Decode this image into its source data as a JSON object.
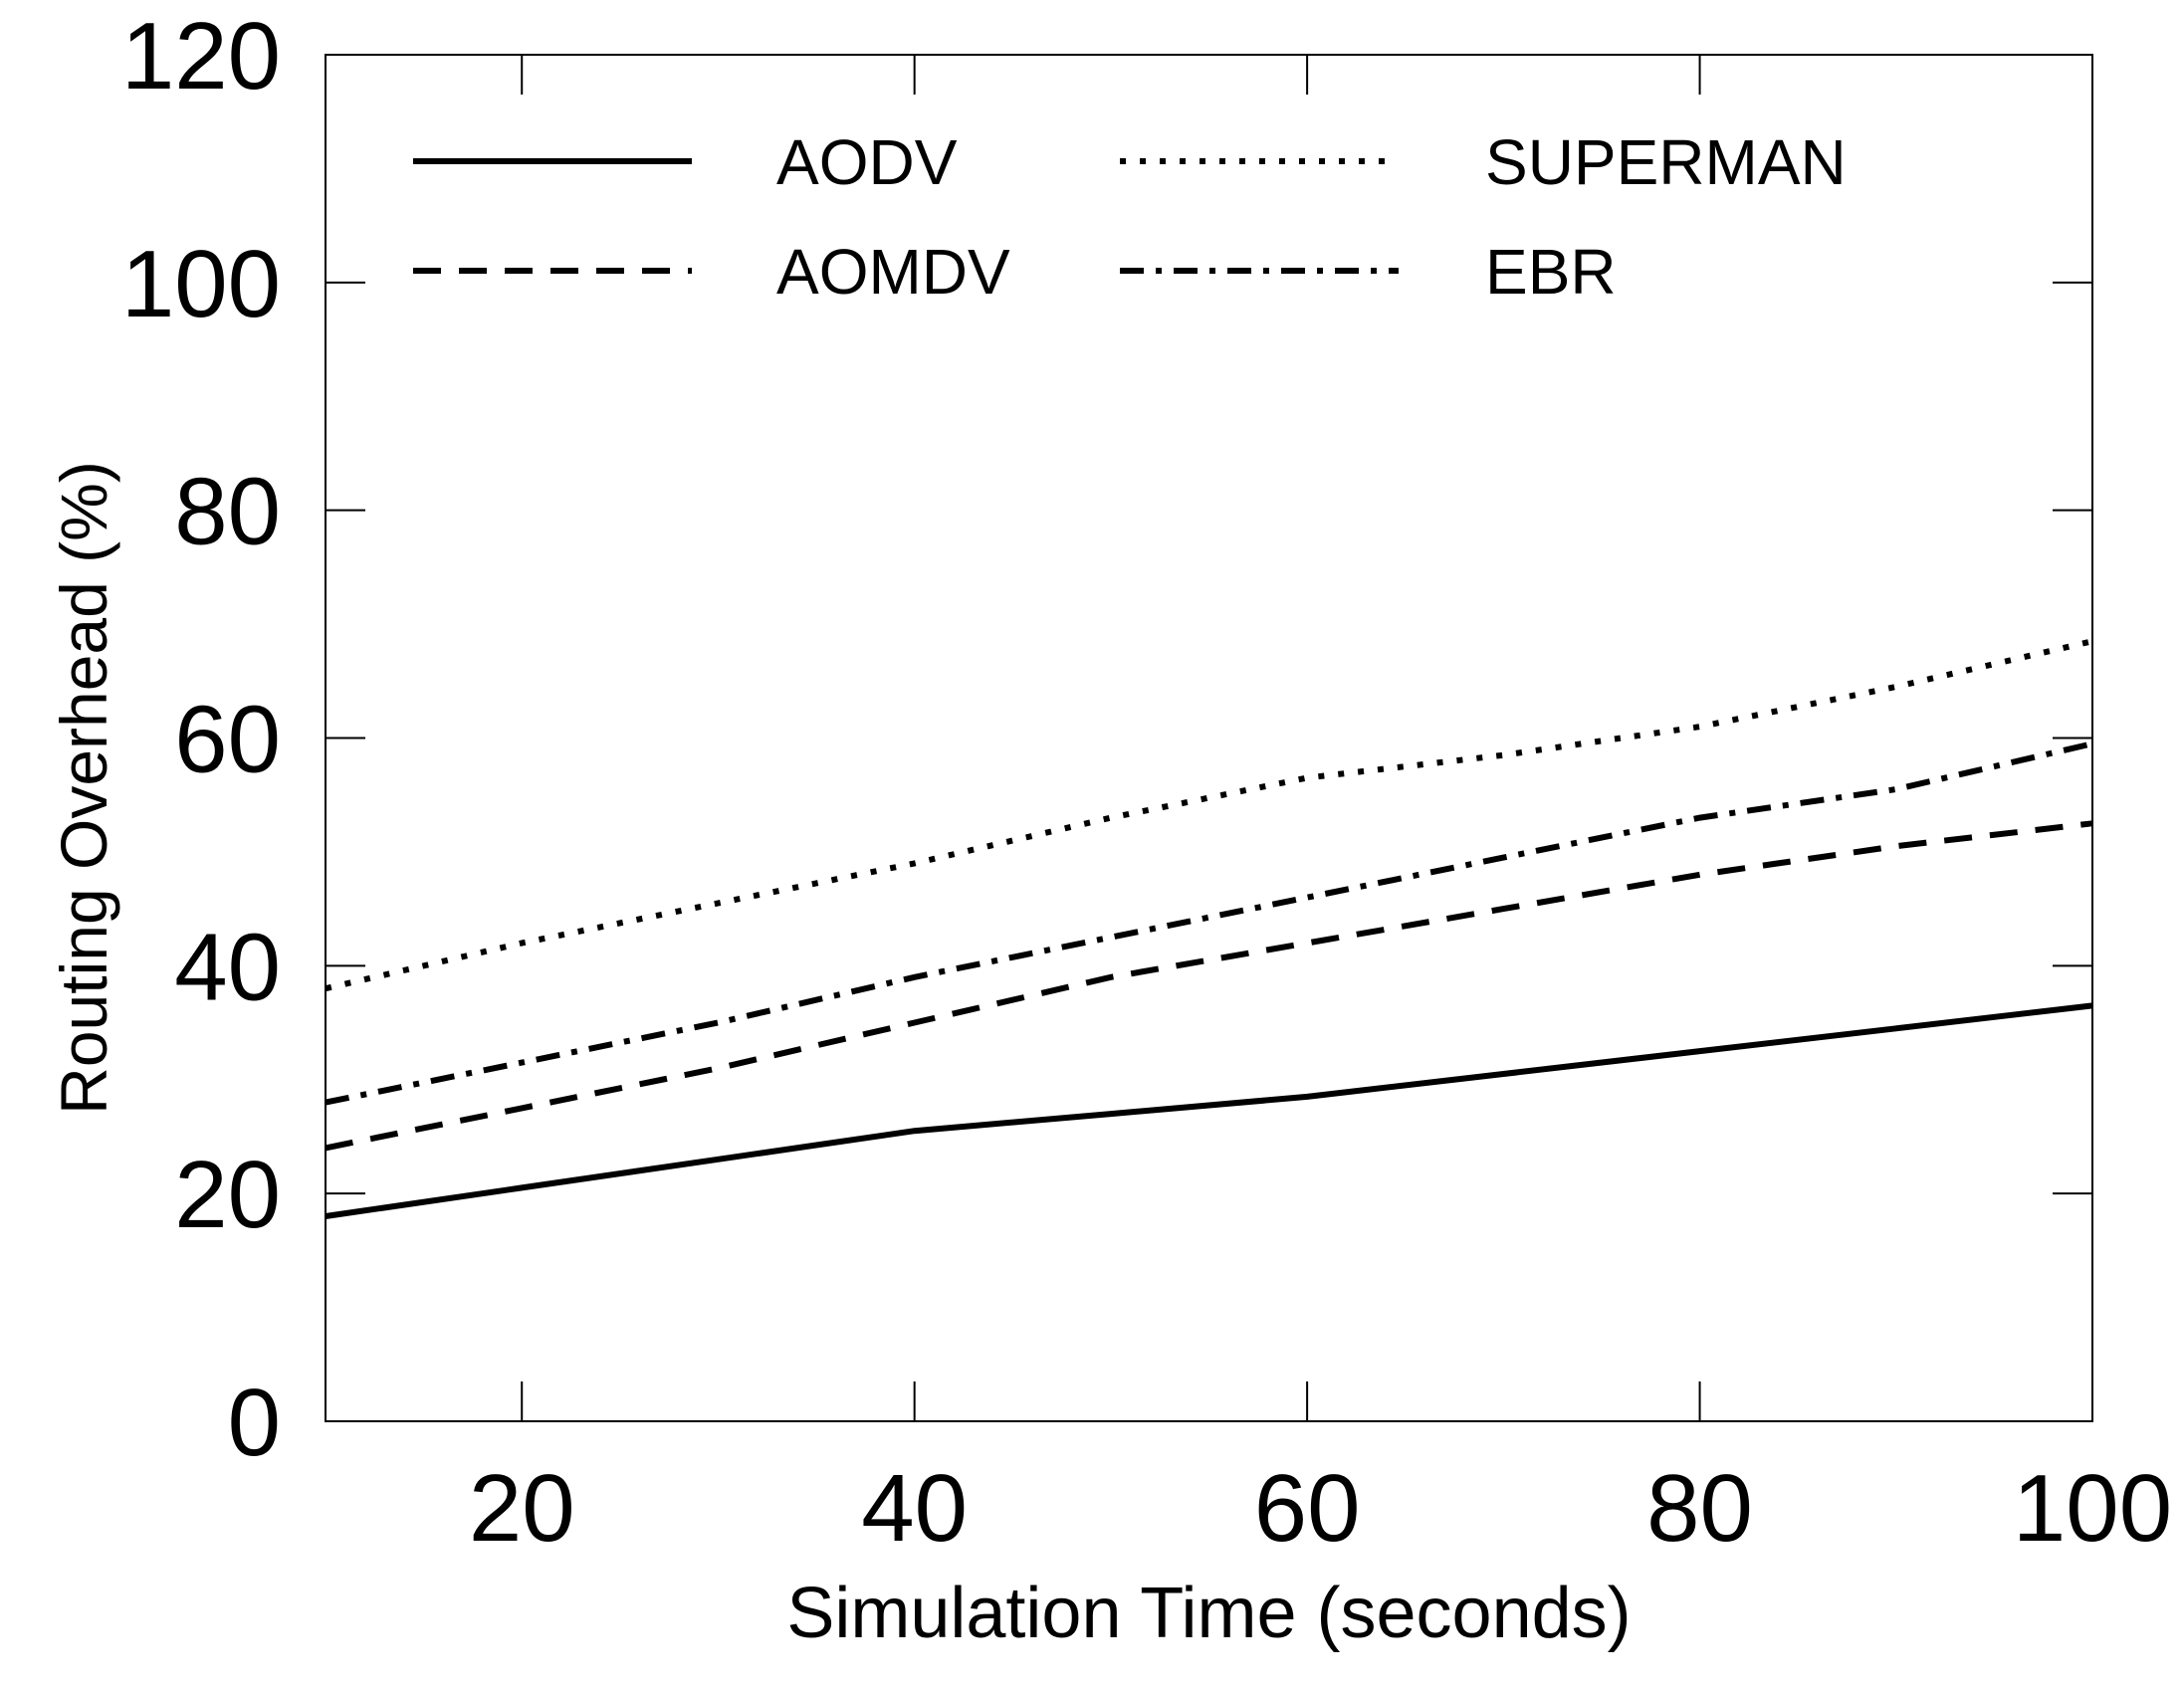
{
  "chart_data": {
    "type": "line",
    "title": "",
    "xlabel": "Simulation Time (seconds)",
    "ylabel": "Routing Overhead (%)",
    "xlim": [
      10,
      100
    ],
    "ylim": [
      0,
      120
    ],
    "xticks": [
      20,
      40,
      60,
      80,
      100
    ],
    "yticks": [
      0,
      20,
      40,
      60,
      80,
      100,
      120
    ],
    "grid": false,
    "legend_position": "top-left",
    "x": [
      10,
      20,
      30,
      40,
      50,
      60,
      70,
      80,
      90,
      100
    ],
    "series": [
      {
        "name": "AODV",
        "style": "solid",
        "values": [
          18,
          20.5,
          23,
          25.5,
          27,
          28.5,
          30.5,
          32.5,
          34.5,
          36.5
        ]
      },
      {
        "name": "AOMDV",
        "style": "dashed",
        "values": [
          24,
          27.5,
          31,
          35,
          39,
          42,
          45,
          48,
          50.5,
          52.5
        ]
      },
      {
        "name": "SUPERMAN",
        "style": "dotted",
        "values": [
          38,
          42,
          45.5,
          49,
          53,
          56.5,
          58.5,
          61,
          64.5,
          68.5
        ]
      },
      {
        "name": "EBR",
        "style": "dashdot",
        "values": [
          28,
          31.5,
          35,
          39,
          42.5,
          46,
          49.5,
          53,
          55.5,
          59.5
        ]
      }
    ]
  }
}
